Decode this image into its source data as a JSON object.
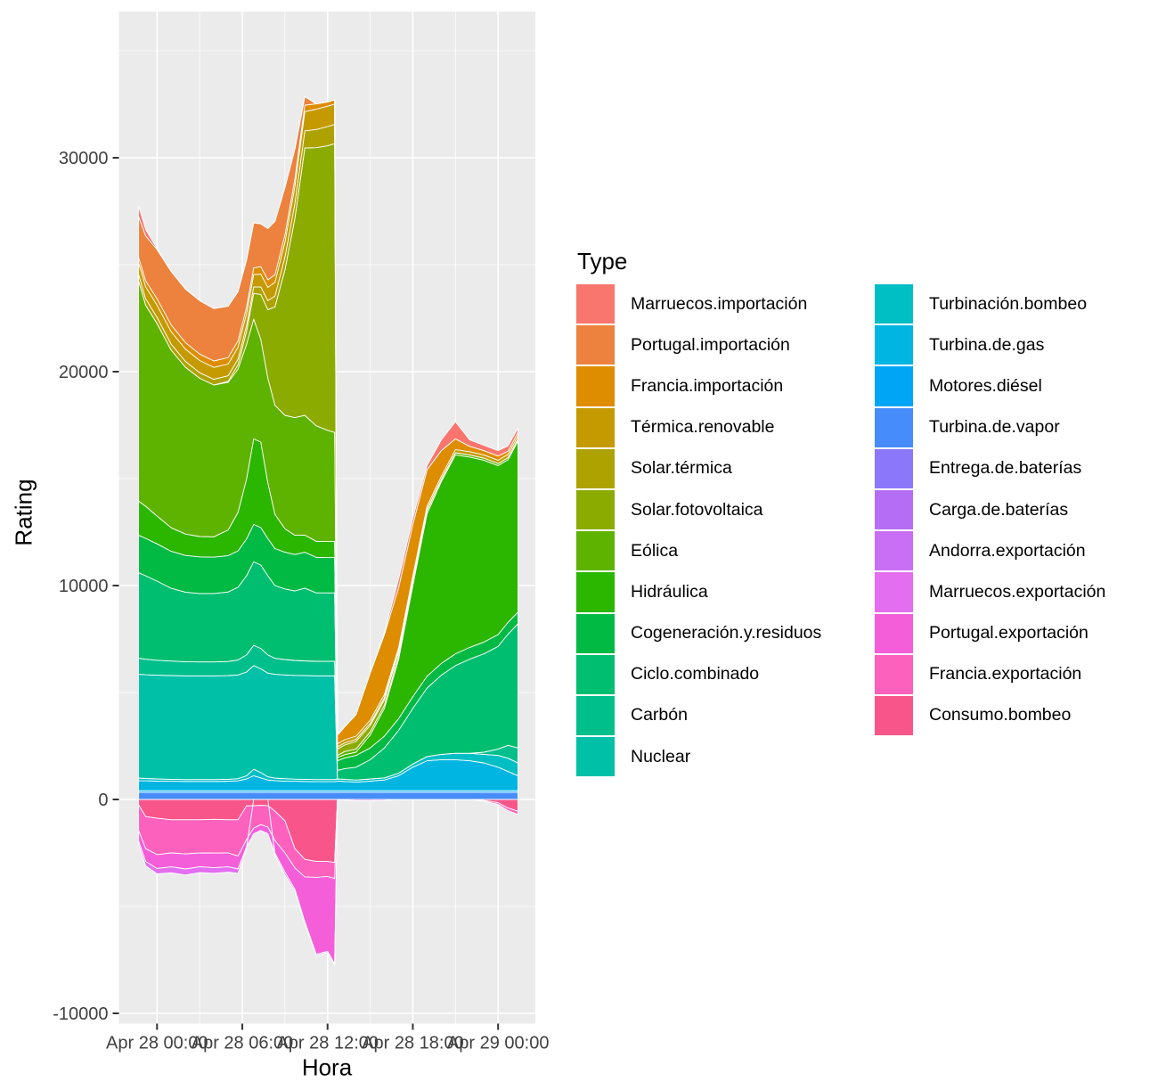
{
  "figure": {
    "background": "#FFFFFF",
    "panel_background": "#EBEBEB",
    "gridline_color": "#FFFFFF",
    "area_outline_color": "#FFFFFF",
    "axis_text_color": "#404040",
    "tick_mark_color": "#333333"
  },
  "axes": {
    "y": {
      "title": "Rating",
      "ticks": [
        {
          "label": "30000",
          "value": 30000
        },
        {
          "label": "20000",
          "value": 20000
        },
        {
          "label": "10000",
          "value": 10000
        },
        {
          "label": "0",
          "value": 0
        },
        {
          "label": "-10000",
          "value": -10000
        }
      ]
    },
    "x": {
      "title": "Hora",
      "ticks": [
        {
          "label": "Apr 28 00:00",
          "t": 0
        },
        {
          "label": "Apr 28 06:00",
          "t": 6
        },
        {
          "label": "Apr 28 12:00",
          "t": 12
        },
        {
          "label": "Apr 28 18:00",
          "t": 18
        },
        {
          "label": "Apr 29 00:00",
          "t": 24
        }
      ]
    }
  },
  "legend": {
    "title": "Type",
    "column_split": 12
  },
  "chart_data": {
    "type": "area",
    "stacked": true,
    "title": "",
    "xlabel": "Hora",
    "ylabel": "Rating",
    "x_unit": "hours relative to Apr 28 00:00",
    "xlim": [
      -2.7,
      26.6
    ],
    "ylim": [
      -10458,
      36833
    ],
    "grid": {
      "major_y": [
        -10000,
        0,
        10000,
        20000,
        30000
      ],
      "minor_y": [
        -5000,
        5000,
        15000,
        25000,
        35000
      ],
      "major_x": [
        0,
        6,
        12,
        18,
        24
      ],
      "minor_x": [
        3,
        9,
        15,
        21
      ]
    },
    "legend_position": "right",
    "x": [
      -1.3,
      -0.8,
      0,
      1,
      2,
      3,
      4,
      5,
      5.7,
      6.3,
      6.8,
      7.3,
      7.8,
      8.3,
      9,
      9.7,
      10.4,
      11.2,
      12,
      12.5,
      12.7,
      13.2,
      14,
      15,
      16,
      17,
      18,
      19,
      20,
      21,
      22,
      23,
      24,
      24.7,
      25.4
    ],
    "series": [
      {
        "name": "Marruecos.importación",
        "color": "#F8766D",
        "values": [
          500,
          300,
          50,
          0,
          0,
          0,
          0,
          0,
          0,
          0,
          0,
          0,
          0,
          0,
          0,
          0,
          0,
          0,
          0,
          0,
          0,
          0,
          0,
          0,
          100,
          400,
          300,
          200,
          500,
          800,
          300,
          250,
          250,
          250,
          200
        ]
      },
      {
        "name": "Portugal.importación",
        "color": "#EC823D",
        "values": [
          1900,
          2100,
          2300,
          2500,
          2500,
          2500,
          2450,
          2400,
          2300,
          2200,
          2100,
          2000,
          2400,
          2500,
          2200,
          1400,
          400,
          0,
          0,
          0,
          0,
          0,
          0,
          0,
          0,
          0,
          0,
          0,
          0,
          0,
          0,
          0,
          0,
          0,
          0
        ]
      },
      {
        "name": "Francia.importación",
        "color": "#DE8C00",
        "values": [
          250,
          280,
          300,
          320,
          300,
          300,
          300,
          300,
          300,
          300,
          320,
          350,
          350,
          350,
          350,
          350,
          300,
          250,
          200,
          200,
          400,
          600,
          1000,
          2200,
          2800,
          2800,
          2400,
          1700,
          1200,
          500,
          250,
          200,
          200,
          150,
          150
        ]
      },
      {
        "name": "Térmica.renovable",
        "color": "#C49A00",
        "values": [
          550,
          560,
          570,
          580,
          580,
          570,
          560,
          550,
          550,
          560,
          580,
          600,
          620,
          650,
          700,
          800,
          900,
          950,
          950,
          950,
          150,
          150,
          150,
          150,
          150,
          150,
          150,
          150,
          150,
          150,
          150,
          150,
          150,
          150,
          150
        ]
      },
      {
        "name": "Solar.térmica",
        "color": "#AEA200",
        "values": [
          300,
          300,
          290,
          280,
          270,
          260,
          260,
          260,
          270,
          280,
          300,
          350,
          420,
          500,
          600,
          700,
          800,
          850,
          900,
          900,
          100,
          100,
          100,
          100,
          100,
          50,
          50,
          0,
          0,
          0,
          0,
          0,
          0,
          0,
          0
        ]
      },
      {
        "name": "Solar.fotovoltaica",
        "color": "#8CAB00",
        "values": [
          0,
          0,
          0,
          0,
          0,
          0,
          0,
          50,
          200,
          600,
          1200,
          2100,
          3200,
          4600,
          6800,
          9300,
          12500,
          13000,
          13300,
          13500,
          300,
          300,
          350,
          300,
          250,
          200,
          100,
          50,
          0,
          0,
          0,
          0,
          0,
          0,
          0
        ]
      },
      {
        "name": "Eólica",
        "color": "#5EB300",
        "values": [
          10300,
          9400,
          9000,
          8300,
          7800,
          7400,
          7100,
          6900,
          6700,
          6300,
          5600,
          4800,
          4900,
          5100,
          5300,
          5500,
          5600,
          5400,
          5200,
          5100,
          100,
          150,
          150,
          150,
          150,
          150,
          150,
          150,
          100,
          100,
          100,
          100,
          100,
          100,
          100
        ]
      },
      {
        "name": "Hidráulica",
        "color": "#2BB600",
        "values": [
          1600,
          1500,
          1300,
          1100,
          1000,
          950,
          950,
          1200,
          1800,
          2800,
          4000,
          4000,
          2600,
          1600,
          1100,
          900,
          800,
          750,
          750,
          750,
          150,
          150,
          150,
          600,
          1300,
          2770,
          5200,
          7600,
          8500,
          9300,
          8900,
          8500,
          7900,
          7600,
          8000
        ]
      },
      {
        "name": "Cogeneración.y.residuos",
        "color": "#00BA43",
        "values": [
          1750,
          1750,
          1740,
          1730,
          1720,
          1710,
          1700,
          1700,
          1700,
          1720,
          1750,
          1750,
          1740,
          1730,
          1720,
          1700,
          1680,
          1660,
          1650,
          1650,
          450,
          500,
          550,
          550,
          550,
          550,
          550,
          550,
          550,
          550,
          550,
          550,
          550,
          550,
          550
        ]
      },
      {
        "name": "Ciclo.combinado",
        "color": "#00BE6F",
        "values": [
          4000,
          3900,
          3700,
          3400,
          3250,
          3200,
          3200,
          3250,
          3400,
          3700,
          3900,
          3900,
          3700,
          3400,
          3300,
          3250,
          3400,
          3200,
          3200,
          3200,
          400,
          500,
          600,
          900,
          1400,
          2000,
          2600,
          3200,
          3700,
          4100,
          4400,
          4600,
          4800,
          5200,
          5800
        ]
      },
      {
        "name": "Carbón",
        "color": "#00BF8B",
        "values": [
          750,
          730,
          700,
          680,
          660,
          650,
          650,
          660,
          700,
          800,
          950,
          950,
          850,
          750,
          720,
          700,
          690,
          680,
          680,
          680,
          0,
          0,
          0,
          0,
          0,
          0,
          0,
          0,
          0,
          0,
          0,
          100,
          300,
          600,
          700
        ]
      },
      {
        "name": "Nuclear",
        "color": "#00C0A8",
        "values": [
          4850,
          4850,
          4850,
          4850,
          4850,
          4850,
          4850,
          4850,
          4850,
          4850,
          4850,
          4850,
          4850,
          4850,
          4850,
          4850,
          4850,
          4850,
          4850,
          4850,
          0,
          0,
          0,
          0,
          0,
          0,
          0,
          0,
          0,
          0,
          0,
          0,
          0,
          0,
          0
        ]
      },
      {
        "name": "Turbinación.bombeo",
        "color": "#00BFC4",
        "values": [
          120,
          110,
          100,
          90,
          90,
          90,
          90,
          90,
          100,
          150,
          300,
          250,
          150,
          120,
          110,
          100,
          100,
          100,
          100,
          100,
          100,
          100,
          100,
          100,
          100,
          120,
          150,
          200,
          250,
          300,
          350,
          400,
          550,
          620,
          600
        ]
      },
      {
        "name": "Turbina.de.gas",
        "color": "#00B5E2",
        "values": [
          470,
          460,
          450,
          440,
          430,
          430,
          430,
          440,
          460,
          550,
          700,
          600,
          500,
          470,
          450,
          440,
          430,
          420,
          420,
          420,
          450,
          430,
          400,
          450,
          500,
          700,
          1100,
          1400,
          1450,
          1450,
          1400,
          1300,
          1100,
          900,
          700
        ]
      },
      {
        "name": "Motores.diésel",
        "color": "#00A6F5",
        "values": [
          80,
          80,
          80,
          80,
          80,
          80,
          80,
          80,
          80,
          80,
          80,
          80,
          80,
          80,
          80,
          80,
          80,
          80,
          80,
          80,
          80,
          80,
          80,
          80,
          80,
          80,
          80,
          80,
          80,
          80,
          80,
          80,
          80,
          80,
          80
        ]
      },
      {
        "name": "Turbina.de.vapor",
        "color": "#468CFB",
        "values": [
          330,
          330,
          330,
          330,
          330,
          330,
          330,
          330,
          330,
          330,
          330,
          330,
          330,
          330,
          330,
          330,
          330,
          330,
          330,
          330,
          330,
          330,
          330,
          330,
          330,
          330,
          330,
          330,
          330,
          330,
          330,
          330,
          330,
          330,
          330
        ]
      },
      {
        "name": "Entrega.de.baterías",
        "color": "#8B77FA",
        "values": [
          0,
          0,
          0,
          0,
          0,
          0,
          0,
          0,
          0,
          0,
          0,
          0,
          0,
          0,
          0,
          0,
          0,
          0,
          0,
          0,
          0,
          0,
          0,
          0,
          0,
          0,
          0,
          0,
          0,
          0,
          0,
          0,
          0,
          0,
          0
        ]
      },
      {
        "name": "Carga.de.baterías",
        "color": "#B56DF6",
        "values": [
          0,
          0,
          0,
          0,
          0,
          0,
          0,
          0,
          0,
          0,
          0,
          0,
          0,
          0,
          0,
          0,
          0,
          0,
          0,
          0,
          0,
          0,
          0,
          0,
          0,
          0,
          0,
          0,
          0,
          0,
          0,
          0,
          0,
          0,
          0
        ]
      },
      {
        "name": "Andorra.exportación",
        "color": "#C96FF5",
        "values": [
          0,
          0,
          0,
          0,
          0,
          0,
          0,
          0,
          0,
          0,
          0,
          0,
          0,
          0,
          0,
          0,
          0,
          0,
          0,
          0,
          0,
          0,
          0,
          0,
          0,
          0,
          0,
          0,
          0,
          0,
          0,
          0,
          0,
          0,
          0
        ]
      },
      {
        "name": "Marruecos.exportación",
        "color": "#E36EF0",
        "values": [
          -150,
          -200,
          -250,
          -280,
          -280,
          -270,
          -260,
          -250,
          -200,
          -80,
          0,
          0,
          0,
          -80,
          -120,
          -100,
          -80,
          -60,
          -50,
          -50,
          0,
          -30,
          -60,
          -60,
          -50,
          0,
          0,
          0,
          0,
          0,
          0,
          0,
          0,
          0,
          0
        ]
      },
      {
        "name": "Portugal.exportación",
        "color": "#F55ED9",
        "values": [
          -500,
          -600,
          -650,
          -650,
          -700,
          -650,
          -680,
          -650,
          -600,
          -350,
          -260,
          -270,
          -310,
          -600,
          -900,
          -1000,
          -2100,
          -3600,
          -3500,
          -4000,
          0,
          0,
          0,
          0,
          0,
          0,
          0,
          0,
          0,
          0,
          0,
          0,
          0,
          0,
          0
        ]
      },
      {
        "name": "Francia.exportación",
        "color": "#FC61BD",
        "values": [
          -1200,
          -1500,
          -1700,
          -1550,
          -1600,
          -1550,
          -1580,
          -1550,
          -1700,
          -1570,
          -1050,
          -900,
          -1000,
          -1370,
          -1500,
          -900,
          -820,
          -740,
          -700,
          -750,
          0,
          0,
          0,
          0,
          0,
          0,
          0,
          0,
          0,
          0,
          0,
          -30,
          -80,
          -120,
          -150
        ]
      },
      {
        "name": "Consumo.bombeo",
        "color": "#F8568B",
        "values": [
          -250,
          -800,
          -880,
          -950,
          -950,
          -950,
          -930,
          -950,
          -950,
          -300,
          -290,
          -280,
          -290,
          -550,
          -1000,
          -2300,
          -2800,
          -2900,
          -2900,
          -2950,
          0,
          0,
          0,
          0,
          0,
          0,
          0,
          0,
          0,
          0,
          0,
          -50,
          -150,
          -400,
          -550
        ]
      }
    ]
  }
}
